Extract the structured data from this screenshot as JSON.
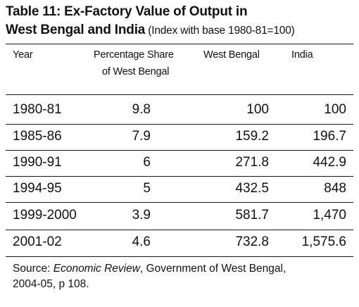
{
  "title": {
    "line1": "Table 11: Ex-Factory Value of Output in",
    "line2_bold": "West Bengal and India",
    "line2_note": " (Index with base 1980-81=100)"
  },
  "headers": {
    "year": "Year",
    "share_line1": "Percentage Share",
    "share_line2": "of West Bengal",
    "west_bengal": "West Bengal",
    "india": "India"
  },
  "rows": [
    {
      "year": "1980-81",
      "share": "9.8",
      "west_bengal": "100",
      "india": "100"
    },
    {
      "year": "1985-86",
      "share": "7.9",
      "west_bengal": "159.2",
      "india": "196.7"
    },
    {
      "year": "1990-91",
      "share": "6",
      "west_bengal": "271.8",
      "india": "442.9"
    },
    {
      "year": "1994-95",
      "share": "5",
      "west_bengal": "432.5",
      "india": "848"
    },
    {
      "year": "1999-2000",
      "share": "3.9",
      "west_bengal": "581.7",
      "india": "1,470"
    },
    {
      "year": "2001-02",
      "share": "4.6",
      "west_bengal": "732.8",
      "india": "1,575.6"
    }
  ],
  "source": {
    "prefix": "Source: ",
    "italic": "Economic Review",
    "suffix": ", Government of West Bengal,",
    "line2": "2004-05, p 108."
  }
}
